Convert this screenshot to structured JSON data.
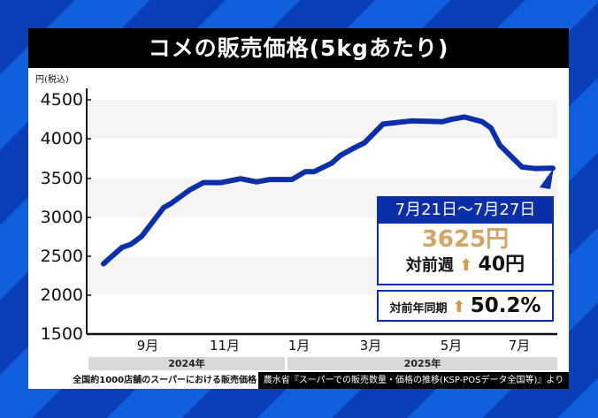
{
  "title": "コメの販売価格(5kgあたり)",
  "y_unit": "円(税込)",
  "y_ticks": [
    "4500",
    "4000",
    "3500",
    "3000",
    "2500",
    "2000",
    "1500"
  ],
  "x_ticks": [
    "9月",
    "11月",
    "1月",
    "3月",
    "5月",
    "7月"
  ],
  "years": [
    "2024年",
    "2025年"
  ],
  "callout": {
    "period": "7月21日〜7月27日",
    "price": "3625円",
    "wow_label": "対前週",
    "wow_arrow": "⬆",
    "wow_value": "40円",
    "yoy_label": "対前年同期",
    "yoy_arrow": "⬆",
    "yoy_value": "50.2%"
  },
  "source_left": "全国約1000店舗のスーパーにおける販売価格",
  "source_right": "農水省『スーパーでの販売数量・価格の推移(KSP-POSデータ全国等)』より",
  "colors": {
    "line": "#0a2fa8",
    "price": "#d2a466",
    "arrow": "#d59a52",
    "title_bg": "#000000"
  },
  "chart_data": {
    "type": "line",
    "title": "コメの販売価格(5kgあたり)",
    "xlabel": "",
    "ylabel": "円(税込)",
    "ylim": [
      1500,
      4500
    ],
    "yticks": [
      1500,
      2000,
      2500,
      3000,
      3500,
      4000,
      4500
    ],
    "xtick_labels": [
      "9月",
      "11月",
      "1月",
      "3月",
      "5月",
      "7月"
    ],
    "year_bands": [
      "2024年",
      "2025年"
    ],
    "grid": "alternating horizontal bands",
    "series": [
      {
        "name": "販売価格",
        "x_index": [
          0,
          1,
          2,
          3,
          4,
          5,
          6,
          7,
          8,
          9,
          10,
          11,
          12,
          13,
          14,
          15,
          16,
          17,
          18,
          19,
          20,
          21,
          22,
          23,
          24,
          25,
          26,
          27,
          28,
          29
        ],
        "values": [
          2400,
          2610,
          2650,
          2750,
          3120,
          3170,
          3350,
          3440,
          3440,
          3490,
          3450,
          3480,
          3480,
          3580,
          3580,
          3690,
          3790,
          3870,
          3950,
          4190,
          4230,
          4220,
          4250,
          4280,
          4220,
          4140,
          3920,
          3640,
          3620,
          3625
        ]
      }
    ],
    "annotation": {
      "period": "7月21日〜7月27日",
      "value": 3625,
      "wow_change": "+40円",
      "yoy_change": "+50.2%"
    }
  }
}
